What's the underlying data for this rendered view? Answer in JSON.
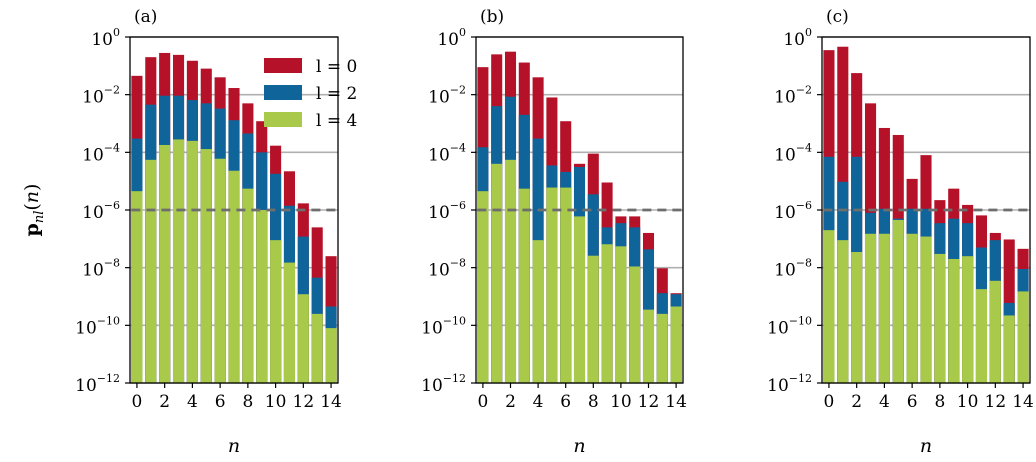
{
  "chart_data": {
    "type": "bar",
    "y_scale": "log",
    "ylim_exponent": [
      -12,
      0
    ],
    "ylabel": "p_nl(n)",
    "xlabel": "n",
    "x_ticks": [
      "0",
      "2",
      "4",
      "6",
      "8",
      "10",
      "12",
      "14"
    ],
    "y_ticks": [
      {
        "base": "10",
        "exp": "0"
      },
      {
        "base": "10",
        "exp": "−2"
      },
      {
        "base": "10",
        "exp": "−4"
      },
      {
        "base": "10",
        "exp": "−6"
      },
      {
        "base": "10",
        "exp": "−8"
      },
      {
        "base": "10",
        "exp": "−10"
      },
      {
        "base": "10",
        "exp": "−12"
      }
    ],
    "grid": "horizontal",
    "legend": {
      "placement": "top-right of panel (a)",
      "entries": [
        "l = 0",
        "l = 2",
        "l = 4"
      ]
    },
    "reference_line": {
      "value": 1e-06,
      "style": "dashed"
    },
    "colors": {
      "l0": "#b5122a",
      "l2": "#0f6499",
      "l4": "#a8c94a",
      "grid": "#b0b0b0",
      "ref": "#6e6e6e"
    },
    "panels": [
      {
        "label": "(a)",
        "categories": [
          0,
          1,
          2,
          3,
          4,
          5,
          6,
          7,
          8,
          9,
          10,
          11,
          12,
          13,
          14
        ],
        "series": [
          {
            "name": "l = 0",
            "values": [
              0.045,
              0.2,
              0.28,
              0.24,
              0.15,
              0.08,
              0.04,
              0.017,
              0.005,
              0.0012,
              0.00017,
              2.2e-05,
              1.7e-06,
              2.5e-07,
              2.5e-08
            ]
          },
          {
            "name": "l = 2",
            "values": [
              0.0003,
              0.0045,
              0.0092,
              0.0092,
              0.0065,
              0.005,
              0.0033,
              0.0013,
              0.00045,
              0.0001,
              1.8e-05,
              1.4e-06,
              1.2e-07,
              4.5e-09,
              4.5e-10
            ]
          },
          {
            "name": "l = 4",
            "values": [
              4.5e-06,
              5.5e-05,
              0.00018,
              0.00028,
              0.00025,
              0.00013,
              6e-05,
              2.3e-05,
              5.5e-06,
              1e-06,
              9e-08,
              1.5e-08,
              1.2e-09,
              2.5e-10,
              8e-11
            ]
          }
        ]
      },
      {
        "label": "(b)",
        "categories": [
          0,
          1,
          2,
          3,
          4,
          5,
          6,
          7,
          8,
          9,
          10,
          11,
          12,
          13,
          14
        ],
        "series": [
          {
            "name": "l = 0",
            "values": [
              0.09,
              0.25,
              0.31,
              0.13,
              0.04,
              0.008,
              0.0012,
              4e-05,
              9e-05,
              9e-06,
              6e-07,
              6e-07,
              1.6e-07,
              9.5e-09,
              1.3e-09
            ]
          },
          {
            "name": "l = 2",
            "values": [
              0.00015,
              0.004,
              0.0085,
              0.002,
              0.0003,
              3.5e-05,
              2.1e-05,
              3.1e-05,
              3.5e-06,
              2.5e-07,
              3.5e-07,
              2.5e-07,
              4.3e-08,
              1.3e-09,
              1.2e-09
            ]
          },
          {
            "name": "l = 4",
            "values": [
              4.5e-06,
              4e-05,
              5.5e-05,
              5.5e-06,
              9e-08,
              6e-06,
              6e-06,
              6e-07,
              2.6e-08,
              6.5e-08,
              5.5e-08,
              1.1e-08,
              3.5e-10,
              2.5e-10,
              4.5e-10
            ]
          }
        ]
      },
      {
        "label": "(c)",
        "categories": [
          0,
          1,
          2,
          3,
          4,
          5,
          6,
          7,
          8,
          9,
          10,
          11,
          12,
          13,
          14
        ],
        "series": [
          {
            "name": "l = 0",
            "values": [
              0.35,
              0.46,
              0.056,
              0.005,
              0.0007,
              0.0004,
              1.2e-05,
              8e-05,
              2.2e-06,
              5.5e-06,
              1.5e-06,
              6.5e-07,
              1.6e-07,
              9.5e-08,
              4.5e-08
            ]
          },
          {
            "name": "l = 2",
            "values": [
              7e-05,
              9.5e-06,
              7e-05,
              8e-07,
              1.1e-06,
              5e-07,
              1.1e-06,
              1.1e-06,
              3.5e-07,
              5e-07,
              3.5e-07,
              5e-08,
              9e-08,
              6e-10,
              9e-09
            ]
          },
          {
            "name": "l = 4",
            "values": [
              2e-07,
              9e-08,
              3.5e-08,
              1.5e-07,
              1.5e-07,
              4.5e-07,
              1.5e-07,
              1.2e-07,
              3e-08,
              2e-08,
              2.5e-08,
              1.8e-09,
              3.5e-09,
              2.2e-10,
              1.5e-09
            ]
          }
        ]
      }
    ]
  }
}
